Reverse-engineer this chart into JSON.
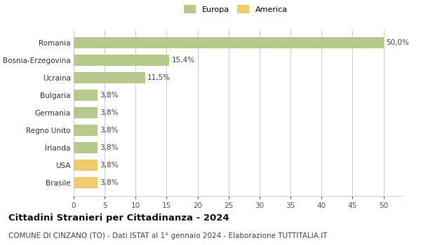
{
  "categories": [
    "Brasile",
    "USA",
    "Irlanda",
    "Regno Unito",
    "Germania",
    "Bulgaria",
    "Ucraina",
    "Bosnia-Erzegovina",
    "Romania"
  ],
  "values": [
    3.8,
    3.8,
    3.8,
    3.8,
    3.8,
    3.8,
    11.5,
    15.4,
    50.0
  ],
  "colors": [
    "#f0ca6e",
    "#f0ca6e",
    "#b5c98a",
    "#b5c98a",
    "#b5c98a",
    "#b5c98a",
    "#b5c98a",
    "#b5c98a",
    "#b5c98a"
  ],
  "labels": [
    "3,8%",
    "3,8%",
    "3,8%",
    "3,8%",
    "3,8%",
    "3,8%",
    "11,5%",
    "15,4%",
    "50,0%"
  ],
  "legend": [
    {
      "label": "Europa",
      "color": "#b5c98a"
    },
    {
      "label": "America",
      "color": "#f0ca6e"
    }
  ],
  "xlim": [
    0,
    53
  ],
  "xticks": [
    0,
    5,
    10,
    15,
    20,
    25,
    30,
    35,
    40,
    45,
    50
  ],
  "title": "Cittadini Stranieri per Cittadinanza - 2024",
  "subtitle": "COMUNE DI CINZANO (TO) - Dati ISTAT al 1° gennaio 2024 - Elaborazione TUTTITALIA.IT",
  "background_color": "#ffffff",
  "bar_height": 0.65,
  "grid_color": "#cccccc",
  "label_fontsize": 7.5,
  "tick_fontsize": 7.5,
  "title_fontsize": 9.5,
  "subtitle_fontsize": 7.5
}
